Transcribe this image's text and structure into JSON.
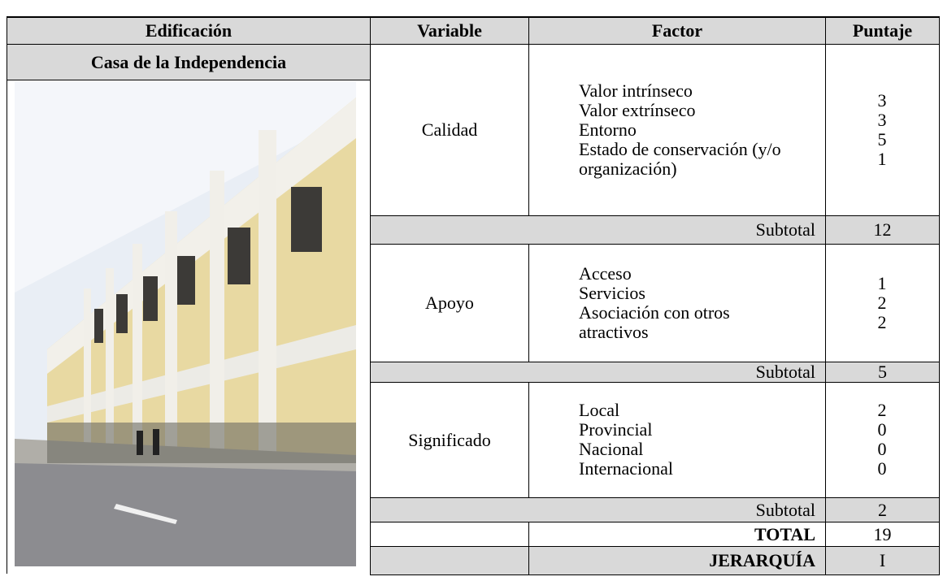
{
  "table": {
    "headers": [
      "Edificación",
      "Variable",
      "Factor",
      "Puntaje"
    ],
    "building": "Casa de la Independencia",
    "groups": [
      {
        "variable": "Calidad",
        "factors": [
          "Valor intrínseco",
          "Valor extrínseco",
          "Entorno",
          "Estado de conservación (y/o organización)"
        ],
        "scores": [
          3,
          3,
          5,
          1
        ],
        "subtotal_label": "Subtotal",
        "subtotal": 12
      },
      {
        "variable": "Apoyo",
        "factors": [
          "Acceso",
          "Servicios",
          "Asociación con otros atractivos"
        ],
        "scores": [
          1,
          2,
          2
        ],
        "subtotal_label": "Subtotal",
        "subtotal": 5
      },
      {
        "variable": "Significado",
        "factors": [
          "Local",
          "Provincial",
          "Nacional",
          "Internacional"
        ],
        "scores": [
          2,
          0,
          0,
          0
        ],
        "subtotal_label": "Subtotal",
        "subtotal": 2
      }
    ],
    "total_label": "TOTAL",
    "total": 19,
    "rank_label": "JERARQUÍA",
    "rank": "I"
  }
}
